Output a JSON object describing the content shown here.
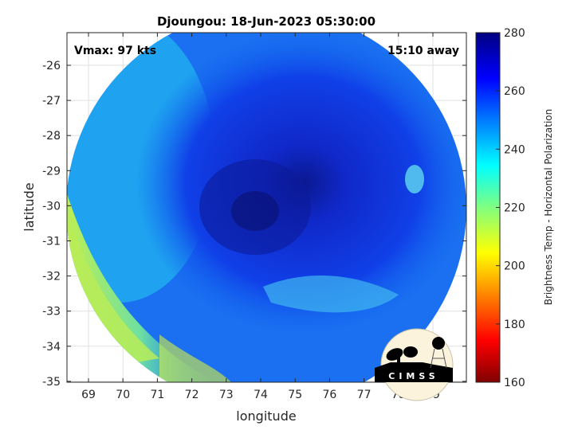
{
  "title": "Djoungou: 18-Jun-2023 05:30:00",
  "annotations": {
    "vmax": "Vmax: 97 kts",
    "time_away": "15:10 away"
  },
  "xlabel": "longitude",
  "ylabel": "latitude",
  "x_ticks": [
    "69",
    "70",
    "71",
    "72",
    "73",
    "74",
    "75",
    "76",
    "77",
    "78",
    "79"
  ],
  "y_ticks": [
    "-26",
    "-27",
    "-28",
    "-29",
    "-30",
    "-31",
    "-32",
    "-33",
    "-34",
    "-35"
  ],
  "colorbar": {
    "label": "Brightness Temp - Horizontal Polarization",
    "ticks": [
      "280",
      "260",
      "240",
      "220",
      "200",
      "180",
      "160"
    ],
    "range": [
      160,
      280
    ],
    "colormap": "jet"
  },
  "logo": {
    "text": "CIMSS"
  },
  "image": {
    "center_lat": -30.2,
    "center_lon": 74.0,
    "description_colors": {
      "eye": "#0a1a9a",
      "core": "#1030d8",
      "outer_band": "#20a8f0",
      "warm_edge": "#c8f050"
    }
  }
}
